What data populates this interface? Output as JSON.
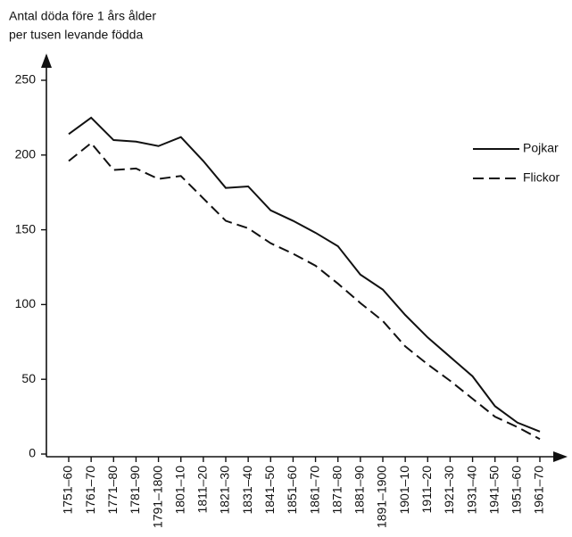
{
  "chart_data": {
    "type": "line",
    "ylabel": [
      "Antal döda före 1 års ålder",
      "per tusen levande födda"
    ],
    "categories": [
      "1751–60",
      "1761–70",
      "1771–80",
      "1781–90",
      "1791–1800",
      "1801–10",
      "1811–20",
      "1821–30",
      "1831–40",
      "1841–50",
      "1851–60",
      "1861–70",
      "1871–80",
      "1881–90",
      "1891–1900",
      "1901–10",
      "1911–20",
      "1921–30",
      "1931–40",
      "1941–50",
      "1951–60",
      "1961–70"
    ],
    "series": [
      {
        "name": "Pojkar",
        "color": "#111111",
        "style": "solid",
        "values": [
          214,
          225,
          210,
          209,
          206,
          212,
          196,
          178,
          179,
          163,
          156,
          148,
          139,
          120,
          110,
          93,
          78,
          65,
          52,
          32,
          21,
          15
        ]
      },
      {
        "name": "Flickor",
        "color": "#111111",
        "style": "dashed",
        "values": [
          196,
          208,
          190,
          191,
          184,
          186,
          171,
          156,
          151,
          141,
          134,
          126,
          114,
          101,
          89,
          72,
          60,
          49,
          37,
          25,
          18,
          10
        ]
      }
    ],
    "ylim": [
      0,
      250
    ],
    "yticks": [
      0,
      50,
      100,
      150,
      200,
      250
    ],
    "legend": "right"
  }
}
